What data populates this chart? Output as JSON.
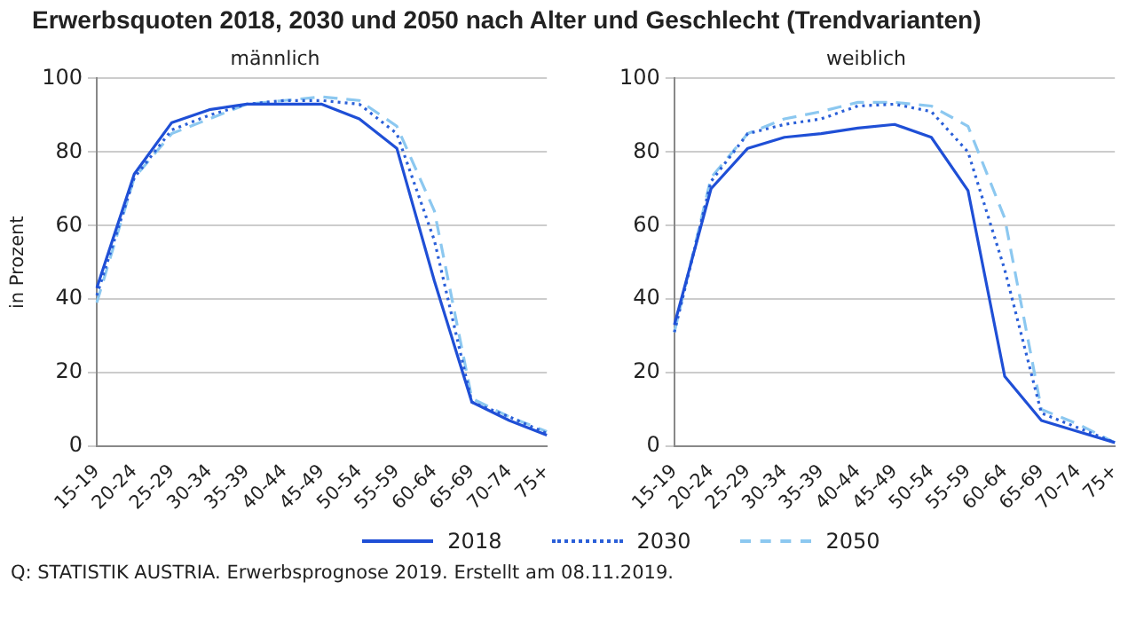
{
  "chart_data": [
    {
      "type": "line",
      "title": "Erwerbsquoten 2018, 2030 und 2050 nach Alter und Geschlecht (Trendvarianten)",
      "subtitle": "männlich",
      "ylabel": "in Prozent",
      "categories": [
        "15-19",
        "20-24",
        "25-29",
        "30-34",
        "35-39",
        "40-44",
        "45-49",
        "50-54",
        "55-59",
        "60-64",
        "65-69",
        "70-74",
        "75+"
      ],
      "series": [
        {
          "name": "2018",
          "color": "#1f4fd6",
          "line_style": "solid",
          "values": [
            43,
            74,
            88,
            91.5,
            93,
            93,
            93,
            89,
            81,
            45,
            12,
            7,
            3
          ]
        },
        {
          "name": "2030",
          "color": "#2a5fd8",
          "line_style": "dotted",
          "values": [
            41,
            73,
            86,
            90,
            93,
            94,
            94,
            93,
            85,
            56,
            12,
            8,
            3.5
          ]
        },
        {
          "name": "2050",
          "color": "#8cc8f0",
          "line_style": "dashed",
          "values": [
            39,
            73,
            85,
            89,
            93,
            94,
            95,
            94,
            87,
            64,
            13,
            8,
            4
          ]
        }
      ],
      "ylim": [
        0,
        100
      ],
      "yticks": [
        0,
        20,
        40,
        60,
        80,
        100
      ],
      "grid": "y",
      "legend": "bottom",
      "annotations": [
        "Q: STATISTIK AUSTRIA. Erwerbsprognose 2019. Erstellt am 08.11.2019."
      ]
    },
    {
      "type": "line",
      "subtitle": "weiblich",
      "categories": [
        "15-19",
        "20-24",
        "25-29",
        "30-34",
        "35-39",
        "40-44",
        "45-49",
        "50-54",
        "55-59",
        "60-64",
        "65-69",
        "70-74",
        "75+"
      ],
      "series": [
        {
          "name": "2018",
          "color": "#1f4fd6",
          "line_style": "solid",
          "values": [
            33,
            70,
            81,
            84,
            85,
            86.5,
            87.5,
            84,
            69.5,
            19,
            7,
            4,
            1
          ]
        },
        {
          "name": "2030",
          "color": "#2a5fd8",
          "line_style": "dotted",
          "values": [
            31,
            72,
            85,
            87.5,
            89,
            92.5,
            93,
            91,
            80,
            48,
            9,
            5,
            1
          ]
        },
        {
          "name": "2050",
          "color": "#8cc8f0",
          "line_style": "dashed",
          "values": [
            31,
            73,
            85,
            89,
            91,
            93.5,
            93.5,
            92.5,
            87,
            62,
            10,
            6,
            1
          ]
        }
      ],
      "ylim": [
        0,
        100
      ],
      "yticks": [
        0,
        20,
        40,
        60,
        80,
        100
      ],
      "grid": "y"
    }
  ]
}
